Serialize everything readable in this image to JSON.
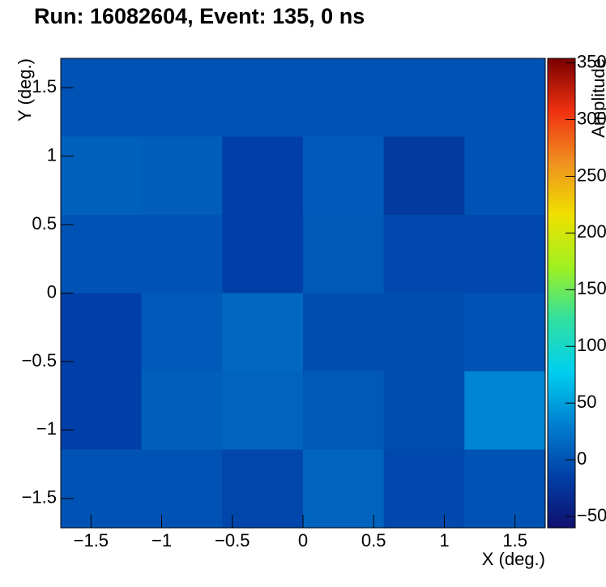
{
  "chart_data": {
    "type": "heatmap",
    "title": "Run: 16082604, Event: 135, 0 ns",
    "x_label": "X (deg.)",
    "y_label": "Y (deg.)",
    "z_label": "Amplitude",
    "xlim": [
      -1.714,
      1.714
    ],
    "ylim": [
      -1.714,
      1.714
    ],
    "zlim": [
      -60,
      354
    ],
    "xticks": [
      {
        "value": -1.5,
        "label": "−1.5"
      },
      {
        "value": -1,
        "label": "−1"
      },
      {
        "value": -0.5,
        "label": "−0.5"
      },
      0,
      0.5,
      1,
      1.5
    ],
    "yticks": [
      {
        "value": -1.5,
        "label": "−1.5"
      },
      {
        "value": -1,
        "label": "−1"
      },
      {
        "value": -0.5,
        "label": "−0.5"
      },
      0,
      0.5,
      1,
      1.5
    ],
    "zticks": [
      {
        "value": -50,
        "label": "−50"
      },
      0,
      50,
      100,
      150,
      200,
      250,
      300,
      350
    ],
    "colormap": [
      "#10106e",
      "#0040a8",
      "#0080d0",
      "#00d0f0",
      "#30e0a0",
      "#a0f020",
      "#f0e000",
      "#f09020",
      "#f03010",
      "#780000"
    ],
    "z": [
      [
        0,
        0,
        0,
        0,
        0,
        0
      ],
      [
        10,
        7,
        -15,
        5,
        -20,
        0
      ],
      [
        0,
        0,
        -15,
        3,
        -8,
        -8
      ],
      [
        -15,
        5,
        15,
        -5,
        -5,
        0
      ],
      [
        -15,
        8,
        12,
        3,
        -5,
        35
      ],
      [
        0,
        0,
        -10,
        12,
        -8,
        0
      ]
    ]
  }
}
